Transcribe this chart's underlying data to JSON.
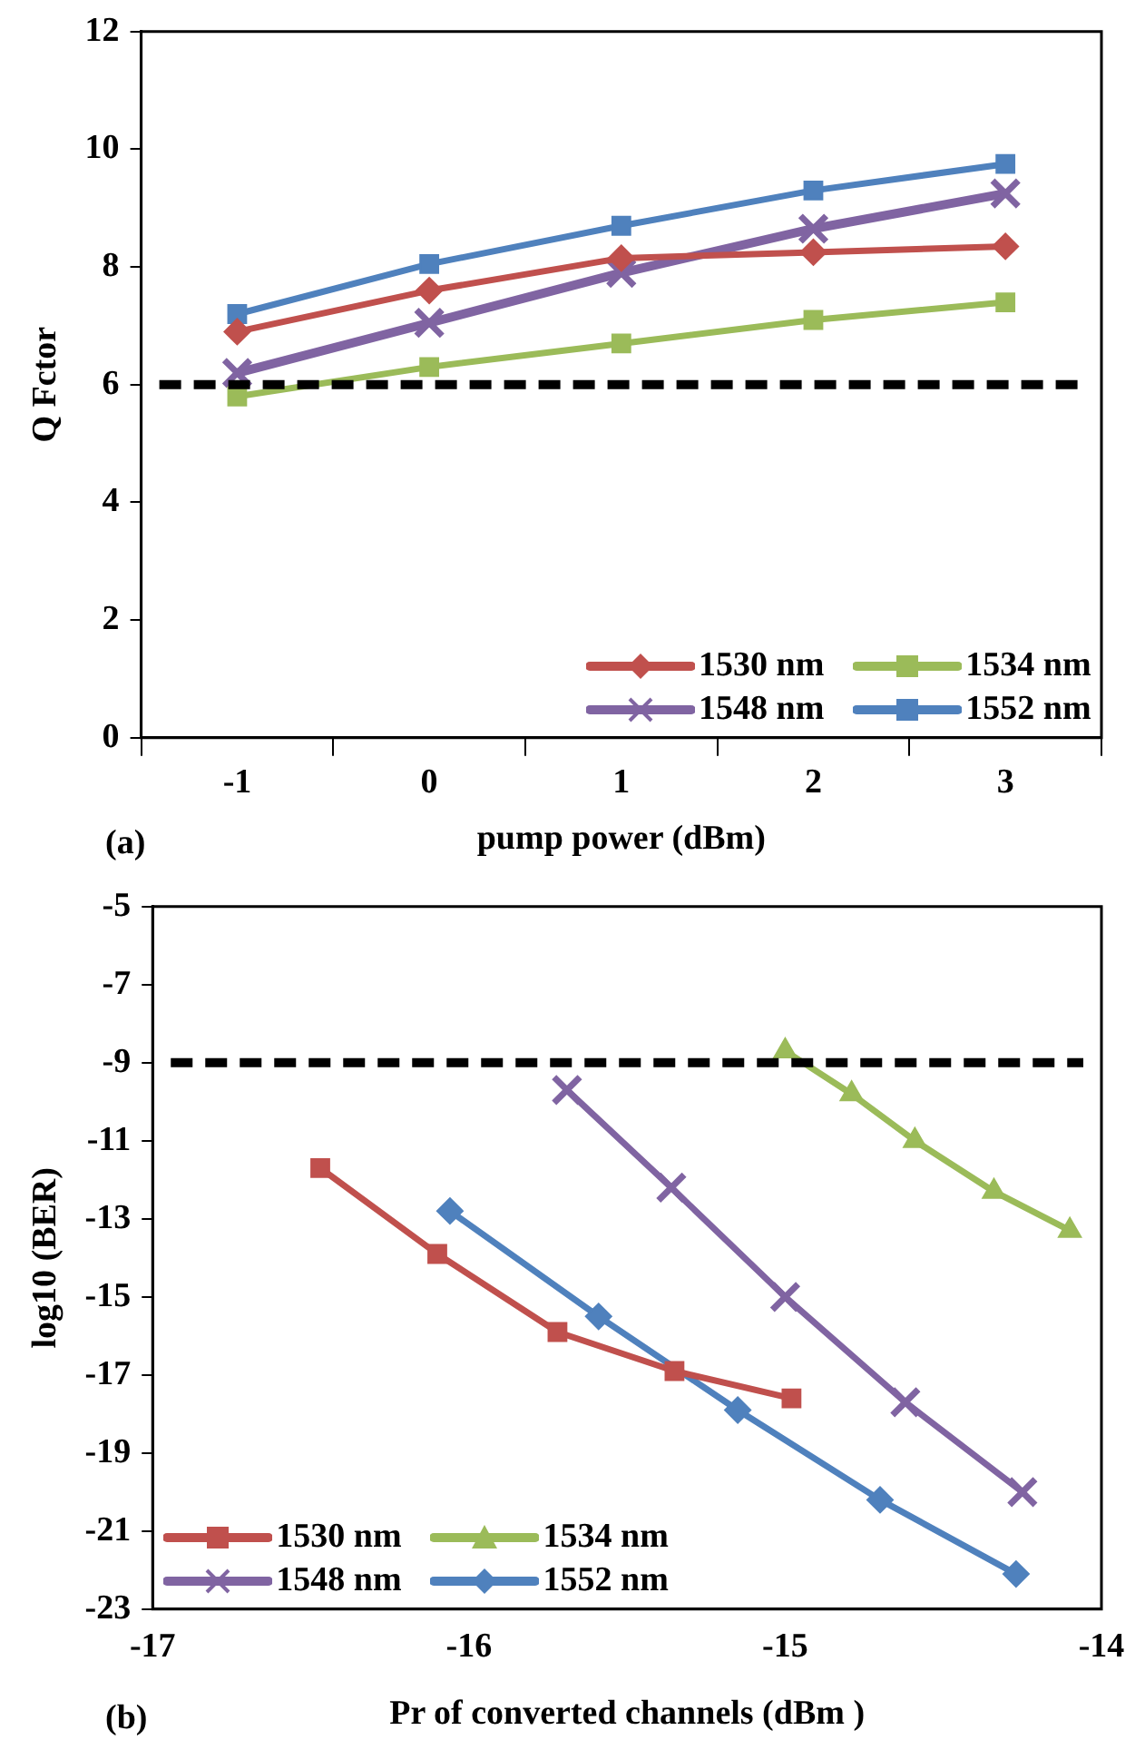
{
  "chart_data": [
    {
      "type": "line",
      "ylabel": "Q Fctor",
      "xlabel": "pump power (dBm)",
      "annotations": [
        "(a)"
      ],
      "categories": [
        "-1",
        "0",
        "1",
        "2",
        "3"
      ],
      "ylim": [
        0,
        12
      ],
      "yticks": [
        0,
        2,
        4,
        6,
        8,
        10,
        12
      ],
      "grid": false,
      "legend": "bottom right",
      "line_style": "solid",
      "ref_lines": [
        {
          "axis": "y",
          "value": 6,
          "color": "#000000",
          "line_style": "dashed"
        }
      ],
      "series": [
        {
          "name": "1530 nm",
          "color": "#c0504d",
          "marker": "diamond",
          "values": [
            6.9,
            7.6,
            8.15,
            8.25,
            8.35
          ]
        },
        {
          "name": "1534 nm",
          "color": "#9bbb59",
          "marker": "square",
          "values": [
            5.8,
            6.3,
            6.7,
            7.1,
            7.4
          ]
        },
        {
          "name": "1548 nm",
          "color": "#8064a2",
          "marker": "cross",
          "values": [
            6.2,
            7.05,
            7.9,
            8.65,
            9.25
          ]
        },
        {
          "name": "1552 nm",
          "color": "#4f81bd",
          "marker": "square",
          "values": [
            7.2,
            8.05,
            8.7,
            9.3,
            9.75
          ]
        }
      ]
    },
    {
      "type": "line",
      "ylabel": "log10 (BER)",
      "xlabel": "Pr of converted channels (dBm )",
      "annotations": [
        "(b)"
      ],
      "xlim": [
        -17,
        -14
      ],
      "xticks": [
        -17,
        -16,
        -15,
        -14
      ],
      "ylim": [
        -23,
        -5
      ],
      "yticks": [
        -23,
        -21,
        -19,
        -17,
        -15,
        -13,
        -11,
        -9,
        -7,
        -5
      ],
      "grid": false,
      "legend": "bottom left",
      "line_style": "solid",
      "ref_lines": [
        {
          "axis": "y",
          "value": -9,
          "color": "#000000",
          "line_style": "dashed"
        }
      ],
      "series": [
        {
          "name": "1530 nm",
          "color": "#c0504d",
          "marker": "square",
          "x": [
            -16.47,
            -16.1,
            -15.72,
            -15.35,
            -14.98
          ],
          "values": [
            -11.7,
            -13.9,
            -15.9,
            -16.9,
            -17.6
          ]
        },
        {
          "name": "1534 nm",
          "color": "#9bbb59",
          "marker": "triangle",
          "x": [
            -15.0,
            -14.79,
            -14.59,
            -14.34,
            -14.1
          ],
          "values": [
            -8.7,
            -9.8,
            -11.0,
            -12.3,
            -13.3
          ]
        },
        {
          "name": "1548 nm",
          "color": "#8064a2",
          "marker": "cross",
          "x": [
            -15.69,
            -15.36,
            -15.0,
            -14.62,
            -14.25
          ],
          "values": [
            -9.7,
            -12.2,
            -15.0,
            -17.7,
            -20.0
          ]
        },
        {
          "name": "1552 nm",
          "color": "#4f81bd",
          "marker": "diamond",
          "x": [
            -16.06,
            -15.59,
            -15.15,
            -14.7,
            -14.27
          ],
          "values": [
            -12.8,
            -15.5,
            -17.9,
            -20.2,
            -22.1
          ]
        }
      ]
    }
  ]
}
